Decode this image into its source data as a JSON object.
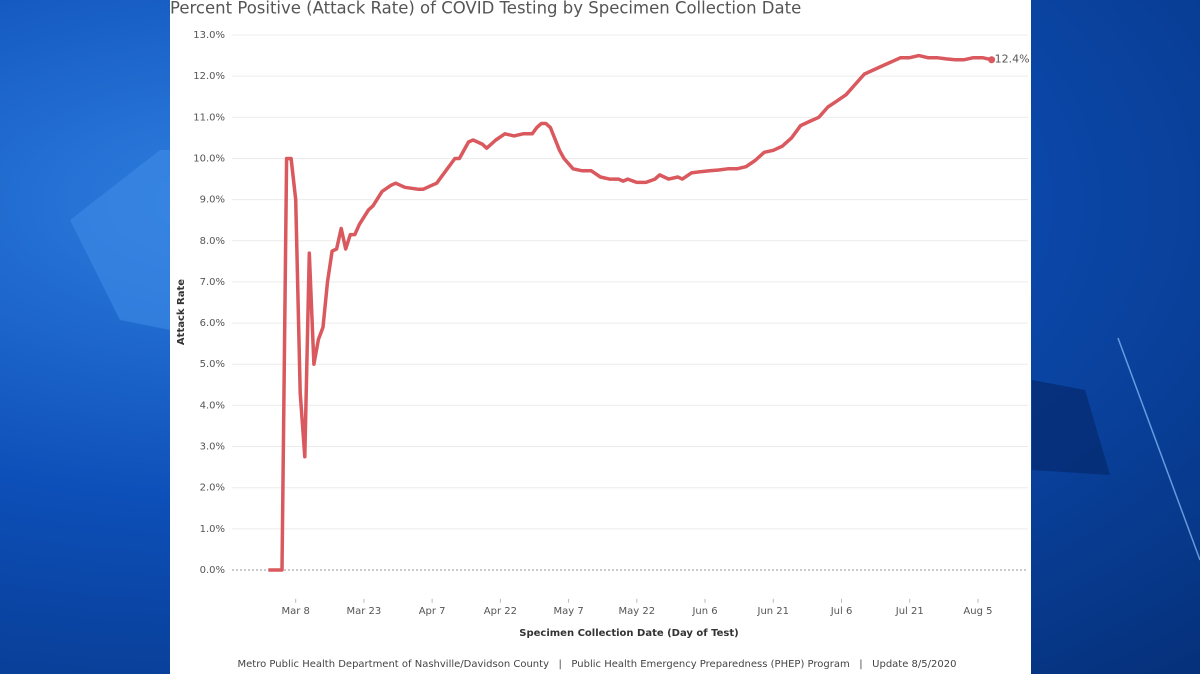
{
  "chart_data": {
    "type": "line",
    "title": "Percent Positive (Attack Rate) of COVID Testing by Specimen Collection Date",
    "y_label": "Attack Rate",
    "x_label": "Specimen Collection Date (Day of Test)",
    "footer": "Metro Public Health Department of Nashville/Davidson County   |   Public Health Emergency Preparedness (PHEP) Program   |   Update 8/5/2020",
    "color": "#d9595e",
    "x": [
      "Mar 2",
      "Mar 5",
      "Mar 6",
      "Mar 7",
      "Mar 8",
      "Mar 9",
      "Mar 10",
      "Mar 11",
      "Mar 12",
      "Mar 13",
      "Mar 14",
      "Mar 15",
      "Mar 16",
      "Mar 17",
      "Mar 18",
      "Mar 19",
      "Mar 20",
      "Mar 21",
      "Mar 22",
      "Mar 24",
      "Mar 25",
      "Mar 27",
      "Mar 29",
      "Mar 30",
      "Apr 1",
      "Apr 4",
      "Apr 5",
      "Apr 7",
      "Apr 8",
      "Apr 10",
      "Apr 12",
      "Apr 13",
      "Apr 15",
      "Apr 16",
      "Apr 18",
      "Apr 19",
      "Apr 21",
      "Apr 23",
      "Apr 25",
      "Apr 27",
      "Apr 29",
      "Apr 30",
      "May 1",
      "May 2",
      "May 3",
      "May 5",
      "May 6",
      "May 8",
      "May 10",
      "May 12",
      "May 14",
      "May 16",
      "May 18",
      "May 19",
      "May 20",
      "May 22",
      "May 24",
      "May 26",
      "May 27",
      "May 29",
      "May 31",
      "Jun 1",
      "Jun 3",
      "Jun 5",
      "Jun 7",
      "Jun 9",
      "Jun 11",
      "Jun 13",
      "Jun 15",
      "Jun 17",
      "Jun 19",
      "Jun 21",
      "Jun 23",
      "Jun 25",
      "Jun 27",
      "Jun 29",
      "Jul 1",
      "Jul 3",
      "Jul 5",
      "Jul 7",
      "Jul 9",
      "Jul 11",
      "Jul 13",
      "Jul 15",
      "Jul 17",
      "Jul 19",
      "Jul 21",
      "Jul 23",
      "Jul 25",
      "Jul 27",
      "Jul 29",
      "Jul 31",
      "Aug 2",
      "Aug 4",
      "Aug 6",
      "Aug 8"
    ],
    "values": [
      0,
      0,
      10.0,
      10.0,
      9.0,
      4.3,
      2.75,
      7.7,
      5.0,
      5.6,
      5.9,
      7.0,
      7.75,
      7.8,
      8.3,
      7.8,
      8.15,
      8.15,
      8.4,
      8.75,
      8.85,
      9.2,
      9.35,
      9.4,
      9.3,
      9.25,
      9.25,
      9.35,
      9.4,
      9.7,
      10.0,
      10.0,
      10.4,
      10.45,
      10.35,
      10.25,
      10.45,
      10.6,
      10.55,
      10.6,
      10.6,
      10.75,
      10.85,
      10.85,
      10.75,
      10.2,
      10.0,
      9.75,
      9.7,
      9.7,
      9.55,
      9.5,
      9.5,
      9.45,
      9.5,
      9.42,
      9.42,
      9.5,
      9.6,
      9.5,
      9.55,
      9.5,
      9.65,
      9.68,
      9.7,
      9.72,
      9.75,
      9.75,
      9.8,
      9.95,
      10.15,
      10.2,
      10.3,
      10.5,
      10.8,
      10.9,
      11.0,
      11.25,
      11.4,
      11.55,
      11.8,
      12.05,
      12.15,
      12.25,
      12.35,
      12.45,
      12.45,
      12.5,
      12.45,
      12.45,
      12.42,
      12.4,
      12.4,
      12.45,
      12.45,
      12.4
    ],
    "value_labels": [
      null,
      null,
      null,
      null,
      null,
      null,
      null,
      null,
      null,
      null,
      null,
      null,
      null,
      null,
      null,
      null,
      null,
      null,
      null,
      null,
      null,
      null,
      null,
      null,
      null,
      null,
      null,
      null,
      null,
      null,
      null,
      null,
      null,
      null,
      null,
      null,
      null,
      null,
      null,
      null,
      null,
      null,
      null,
      null,
      null,
      null,
      null,
      null,
      null,
      null,
      null,
      null,
      null,
      null,
      null,
      null,
      null,
      null,
      null,
      null,
      null,
      null,
      null,
      null,
      null,
      null,
      null,
      null,
      null,
      null,
      null,
      null,
      null,
      null,
      null,
      null,
      null,
      null,
      null,
      null,
      null,
      null,
      null,
      null,
      null,
      null,
      null,
      null,
      null,
      null,
      null,
      null,
      null,
      null,
      null,
      "12.4%"
    ],
    "xlim": [
      "Feb 23",
      "Aug 16"
    ],
    "xticks": [
      "Mar 8",
      "Mar 23",
      "Apr 7",
      "Apr 22",
      "May 7",
      "May 22",
      "Jun 6",
      "Jun 21",
      "Jul 6",
      "Jul 21",
      "Aug 5"
    ],
    "ylim": [
      -0.7,
      13.2
    ],
    "yticks": [
      {
        "value": 0,
        "label": "0.0%"
      },
      {
        "value": 1,
        "label": "1.0%"
      },
      {
        "value": 2,
        "label": "2.0%"
      },
      {
        "value": 3,
        "label": "3.0%"
      },
      {
        "value": 4,
        "label": "4.0%"
      },
      {
        "value": 5,
        "label": "5.0%"
      },
      {
        "value": 6,
        "label": "6.0%"
      },
      {
        "value": 7,
        "label": "7.0%"
      },
      {
        "value": 8,
        "label": "8.0%"
      },
      {
        "value": 9,
        "label": "9.0%"
      },
      {
        "value": 10,
        "label": "10.0%"
      },
      {
        "value": 11,
        "label": "11.0%"
      },
      {
        "value": 12,
        "label": "12.0%"
      },
      {
        "value": 13,
        "label": "13.0%"
      }
    ],
    "grid": true
  }
}
